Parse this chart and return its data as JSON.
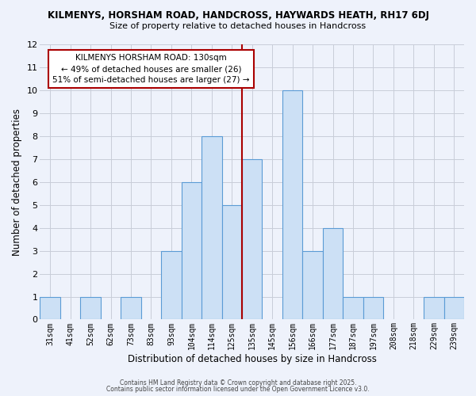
{
  "title_line1": "KILMENYS, HORSHAM ROAD, HANDCROSS, HAYWARDS HEATH, RH17 6DJ",
  "title_line2": "Size of property relative to detached houses in Handcross",
  "xlabel": "Distribution of detached houses by size in Handcross",
  "ylabel": "Number of detached properties",
  "bins": [
    "31sqm",
    "41sqm",
    "52sqm",
    "62sqm",
    "73sqm",
    "83sqm",
    "93sqm",
    "104sqm",
    "114sqm",
    "125sqm",
    "135sqm",
    "145sqm",
    "156sqm",
    "166sqm",
    "177sqm",
    "187sqm",
    "197sqm",
    "208sqm",
    "218sqm",
    "229sqm",
    "239sqm"
  ],
  "counts": [
    1,
    0,
    1,
    0,
    1,
    0,
    3,
    6,
    8,
    5,
    7,
    0,
    10,
    3,
    4,
    1,
    1,
    0,
    0,
    1,
    1
  ],
  "bar_color": "#cce0f5",
  "bar_edge_color": "#5b9bd5",
  "background_color": "#eef2fb",
  "grid_color": "#c8cdd8",
  "vline_x_index": 9.5,
  "vline_color": "#aa0000",
  "annotation_title": "KILMENYS HORSHAM ROAD: 130sqm",
  "annotation_line1": "← 49% of detached houses are smaller (26)",
  "annotation_line2": "51% of semi-detached houses are larger (27) →",
  "annotation_box_edge": "#aa0000",
  "ylim": [
    0,
    12
  ],
  "yticks": [
    0,
    1,
    2,
    3,
    4,
    5,
    6,
    7,
    8,
    9,
    10,
    11,
    12
  ],
  "footer_line1": "Contains HM Land Registry data © Crown copyright and database right 2025.",
  "footer_line2": "Contains public sector information licensed under the Open Government Licence v3.0."
}
